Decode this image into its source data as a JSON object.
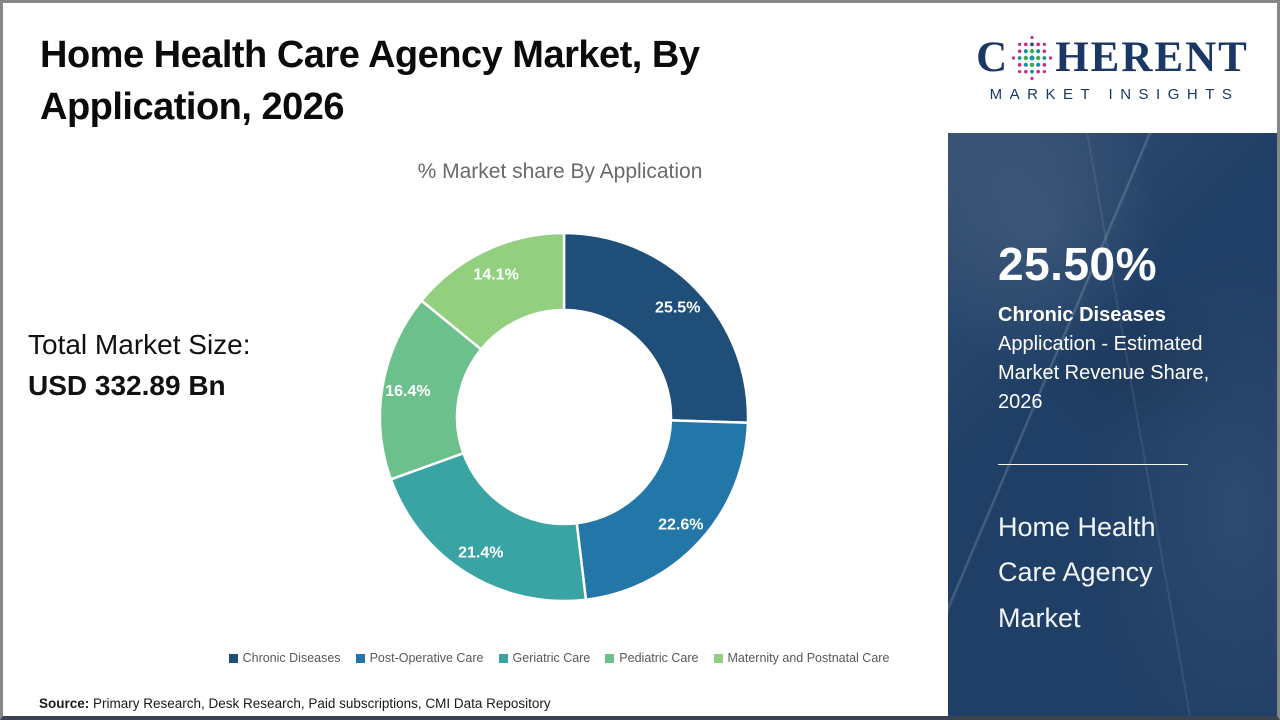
{
  "header": {
    "title": "Home Health Care Agency Market, By Application, 2026"
  },
  "logo": {
    "name_first_letter": "C",
    "name_rest": "HERENT",
    "tagline": "MARKET INSIGHTS",
    "brand_color": "#1b3764",
    "globe_colors": {
      "teal": "#1790a0",
      "green": "#41ab45",
      "magenta": "#c92f8a",
      "navy": "#2b4a8b"
    }
  },
  "chart_data": {
    "type": "pie",
    "subtype": "donut",
    "title": "% Market share By Application",
    "categories": [
      "Chronic Diseases",
      "Post-Operative Care",
      "Geriatric Care",
      "Pediatric Care",
      "Maternity and Postnatal Care"
    ],
    "values": [
      25.5,
      22.6,
      21.4,
      16.4,
      14.1
    ],
    "labels": [
      "25.5%",
      "22.6%",
      "21.4%",
      "16.4%",
      "14.1%"
    ],
    "colors": [
      "#1F4E79",
      "#2277A8",
      "#3AA3A4",
      "#6CC08B",
      "#92D080"
    ],
    "start_angle_deg": 0,
    "direction": "clockwise",
    "inner_radius_ratio": 0.58,
    "legend_position": "bottom",
    "label_color": "#ffffff"
  },
  "market_size": {
    "label": "Total Market Size:",
    "value": "USD 332.89 Bn"
  },
  "sidebar": {
    "background_color": "#203f66",
    "highlight_value": "25.50%",
    "highlight_title": "Chronic Diseases",
    "highlight_desc": "Application - Estimated Market Revenue Share, 2026",
    "market_name": "Home Health Care Agency Market"
  },
  "source": {
    "label": "Source:",
    "text": " Primary Research, Desk Research, Paid subscriptions, CMI Data Repository"
  }
}
